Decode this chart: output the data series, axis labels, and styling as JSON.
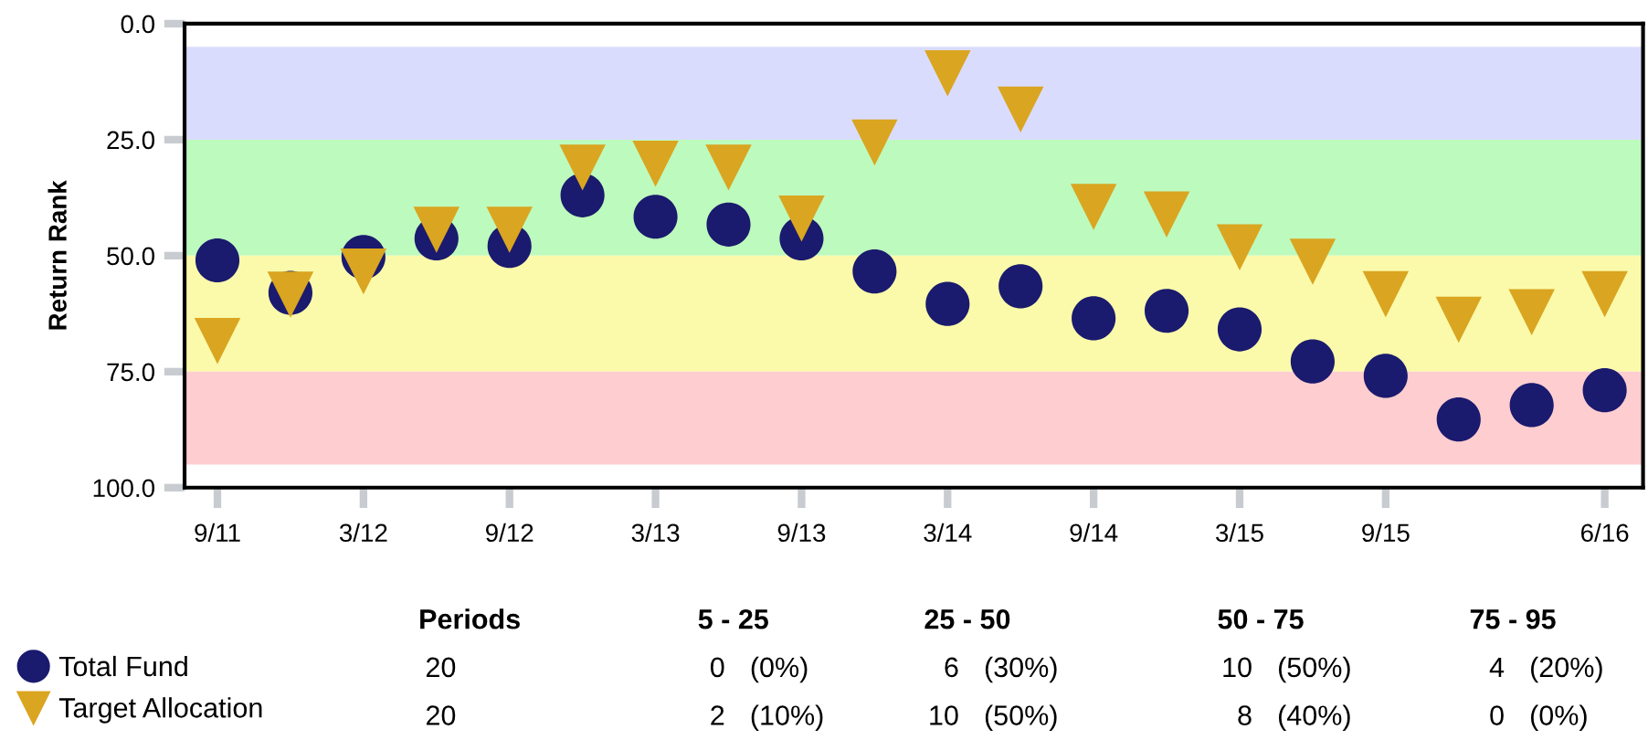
{
  "chart_data": {
    "type": "scatter",
    "ylabel": "Return Rank",
    "categories": [
      "9/11",
      null,
      "3/12",
      null,
      "9/12",
      null,
      "3/13",
      null,
      "9/13",
      null,
      "3/14",
      null,
      "9/14",
      null,
      "3/15",
      null,
      "9/15",
      null,
      null,
      "6/16"
    ],
    "series": [
      {
        "name": "Total Fund",
        "color": "#1a1a6e",
        "marker": "circle",
        "values": [
          51.0,
          58.0,
          50.3,
          46.3,
          47.9,
          37.0,
          41.6,
          43.3,
          46.3,
          53.4,
          60.4,
          56.6,
          63.5,
          61.9,
          65.9,
          72.8,
          75.9,
          85.3,
          82.2,
          79.0
        ]
      },
      {
        "name": "Target Allocation",
        "color": "#daa520",
        "marker": "triangle",
        "values": [
          68.4,
          58.4,
          53.4,
          44.4,
          44.4,
          31.0,
          30.2,
          31.0,
          42.0,
          25.6,
          10.7,
          18.5,
          39.5,
          41.1,
          48.2,
          51.3,
          58.3,
          63.8,
          62.2,
          58.3
        ]
      }
    ],
    "ylim": [
      100,
      0
    ],
    "yticks": [
      {
        "value": 0,
        "label": "0.0"
      },
      {
        "value": 25,
        "label": "25.0"
      },
      {
        "value": 50,
        "label": "50.0"
      },
      {
        "value": 75,
        "label": "75.0"
      },
      {
        "value": 100,
        "label": "100.0"
      }
    ],
    "bands": [
      {
        "axis": "y",
        "from": 5,
        "to": 25,
        "color": "#dadcfd"
      },
      {
        "axis": "y",
        "from": 25,
        "to": 50,
        "color": "#bdfabd"
      },
      {
        "axis": "y",
        "from": 50,
        "to": 75,
        "color": "#fafaaa"
      },
      {
        "axis": "y",
        "from": 75,
        "to": 95,
        "color": "#fdcdd0"
      }
    ],
    "grid": false,
    "legend": "bottom left",
    "annotations": [
      "Periods",
      "5 - 25",
      "25 - 50",
      "50 - 75",
      "75 - 95",
      "20",
      "0   (0%)",
      "6   (30%)",
      "10   (50%)",
      "4   (20%)",
      "20",
      "2   (10%)",
      "10   (50%)",
      "8   (40%)",
      "0   (0%)"
    ]
  }
}
